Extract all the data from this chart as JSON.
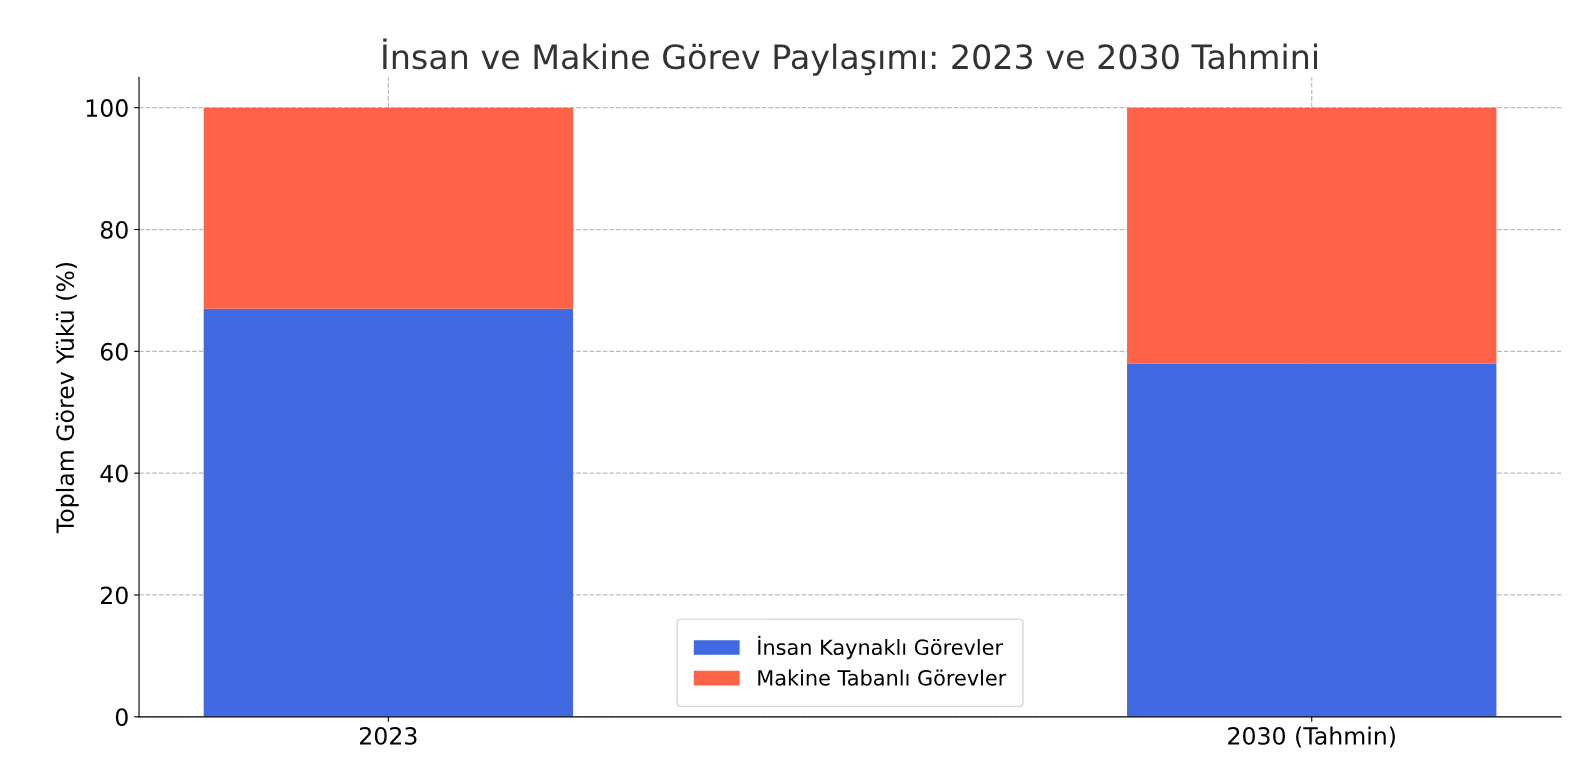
{
  "chart_data": {
    "type": "bar",
    "title": "İnsan ve Makine Görev Paylaşımı: 2023 ve 2030 Tahmini",
    "ylabel": "Toplam Görev Yükü (%)",
    "categories": [
      "2023",
      "2030 (Tahmin)"
    ],
    "series": [
      {
        "name": "İnsan Kaynaklı Görevler",
        "color": "#4169e1",
        "values": [
          67,
          58
        ]
      },
      {
        "name": "Makine Tabanlı Görevler",
        "color": "#ff6347",
        "values": [
          33,
          42
        ]
      }
    ],
    "stacked": true,
    "ylim": [
      0,
      105
    ],
    "yticks": [
      0,
      20,
      40,
      60,
      80,
      100
    ],
    "grid": true,
    "legend": "bottom"
  }
}
